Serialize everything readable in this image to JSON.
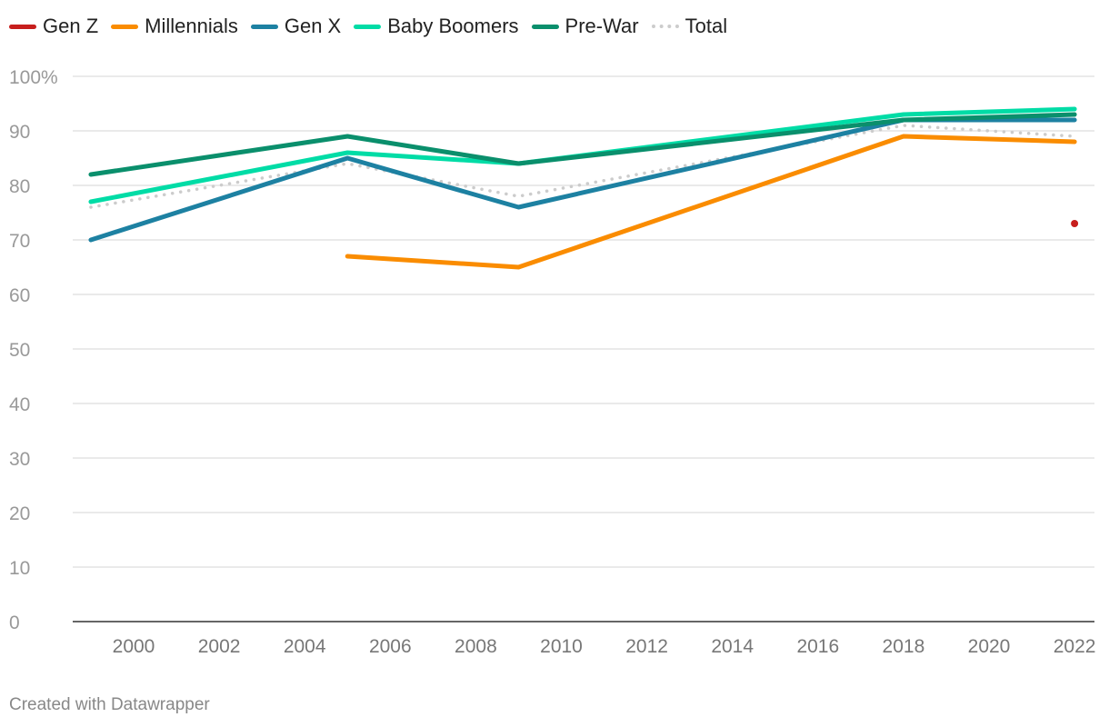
{
  "chart_data": {
    "type": "line",
    "title": "",
    "xlabel": "",
    "ylabel": "",
    "xlim": [
      1999,
      2022
    ],
    "ylim": [
      0,
      100
    ],
    "x_ticks": [
      "2000",
      "2002",
      "2004",
      "2006",
      "2008",
      "2010",
      "2012",
      "2014",
      "2016",
      "2018",
      "2020",
      "2022"
    ],
    "y_ticks": [
      "0",
      "10",
      "20",
      "30",
      "40",
      "50",
      "60",
      "70",
      "80",
      "90",
      "100%"
    ],
    "grid": true,
    "legend_position": "top-left",
    "series": [
      {
        "name": "Total",
        "color": "#cccccc",
        "style": "dotted",
        "x": [
          1999,
          2005,
          2009,
          2018,
          2022
        ],
        "values": [
          76,
          84,
          78,
          91,
          89
        ]
      },
      {
        "name": "Millennials",
        "color": "#fa8c00",
        "x": [
          2005,
          2009,
          2018,
          2022
        ],
        "values": [
          67,
          65,
          89,
          88
        ]
      },
      {
        "name": "Gen X",
        "color": "#1d81a2",
        "x": [
          1999,
          2005,
          2009,
          2018,
          2022
        ],
        "values": [
          70,
          85,
          76,
          92,
          92
        ]
      },
      {
        "name": "Baby Boomers",
        "color": "#00dca6",
        "x": [
          1999,
          2005,
          2009,
          2018,
          2022
        ],
        "values": [
          77,
          86,
          84,
          93,
          94
        ]
      },
      {
        "name": "Pre-War",
        "color": "#0a8f6c",
        "x": [
          1999,
          2005,
          2009,
          2018,
          2022
        ],
        "values": [
          82,
          89,
          84,
          92,
          93
        ]
      },
      {
        "name": "Gen Z",
        "color": "#c71e1d",
        "x": [
          2022
        ],
        "values": [
          73
        ]
      }
    ],
    "legend": [
      "Gen Z",
      "Millennials",
      "Gen X",
      "Baby Boomers",
      "Pre-War",
      "Total"
    ]
  },
  "footer": {
    "credit": "Created with Datawrapper"
  }
}
